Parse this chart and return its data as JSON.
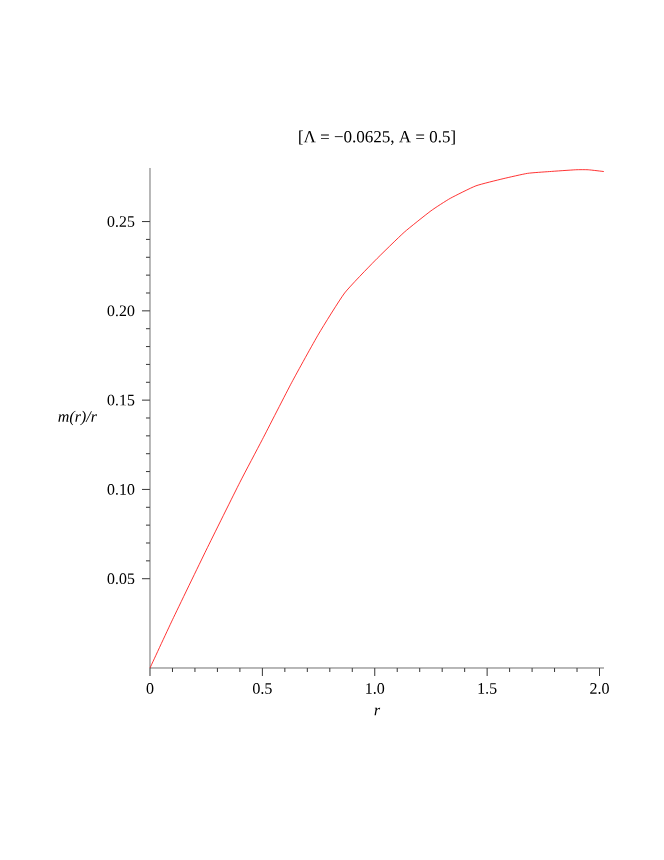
{
  "chart_data": {
    "type": "line",
    "title": "[Λ = −0.0625, A = 0.5]",
    "xlabel": "r",
    "ylabel": "m(r)/r",
    "x": [
      0,
      0.1,
      0.25,
      0.4,
      0.5,
      0.631,
      0.75,
      0.866,
      1.0,
      1.131,
      1.25,
      1.336,
      1.45,
      1.571,
      1.68,
      1.777,
      1.894,
      1.95,
      2.02
    ],
    "series": [
      {
        "color": "#ff0000",
        "values": [
          0,
          0.027,
          0.066,
          0.104,
          0.128,
          0.16,
          0.187,
          0.21,
          0.228,
          0.244,
          0.256,
          0.263,
          0.27,
          0.274,
          0.277,
          0.278,
          0.279,
          0.279,
          0.278
        ]
      }
    ],
    "xlim": [
      0,
      2.02
    ],
    "ylim": [
      0,
      0.28
    ],
    "xticks": [
      0,
      0.5,
      {
        "value": 1.0,
        "label": "1.0"
      },
      1.5,
      {
        "value": 2.0,
        "label": "2.0"
      }
    ],
    "yticks": [
      0.05,
      {
        "value": 0.1,
        "label": "0.10"
      },
      0.15,
      {
        "value": 0.2,
        "label": "0.20"
      },
      0.25
    ],
    "grid": false,
    "marker": "none",
    "line_style": "solid"
  }
}
